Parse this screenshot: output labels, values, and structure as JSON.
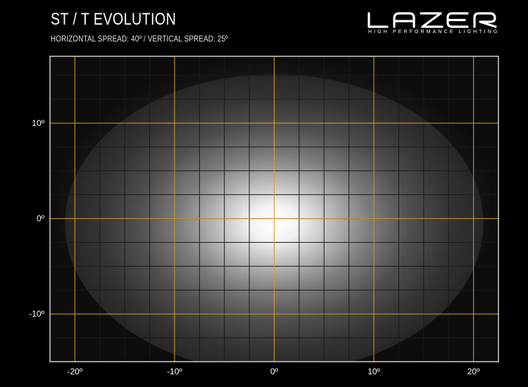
{
  "header": {
    "title": "ST / T EVOLUTION",
    "subtitle": "HORIZONTAL SPREAD: 40º  /  VERTICAL SPREAD:  25º"
  },
  "logo": {
    "name": "LAZER",
    "tagline": "HIGH PERFORMANCE LIGHTING"
  },
  "chart_data": {
    "type": "heatmap",
    "title": "ST / T EVOLUTION",
    "subtitle": "HORIZONTAL SPREAD: 40º  /  VERTICAL SPREAD:  25º",
    "x_ticks": [
      -20,
      -10,
      0,
      10,
      20
    ],
    "y_ticks": [
      10,
      0,
      -10
    ],
    "x_tick_labels": [
      "-20º",
      "-10º",
      "0º",
      "10º",
      "20º"
    ],
    "y_tick_labels": [
      "10º",
      "0º",
      "-10º"
    ],
    "xlim": [
      -22.5,
      22.5
    ],
    "ylim": [
      -15,
      17
    ],
    "minor_grid_step": 2.5,
    "horizontal_spread_deg": 40,
    "vertical_spread_deg": 25,
    "beam_center": [
      0,
      -0.5
    ],
    "grid": true,
    "colors": {
      "background": "#000000",
      "major_grid": "#d4a21f",
      "minor_grid": "#1a1a1a",
      "frame": "#cfcfcf",
      "beam_core": "#ffffff",
      "beam_edge": "#2b2b2b"
    }
  }
}
